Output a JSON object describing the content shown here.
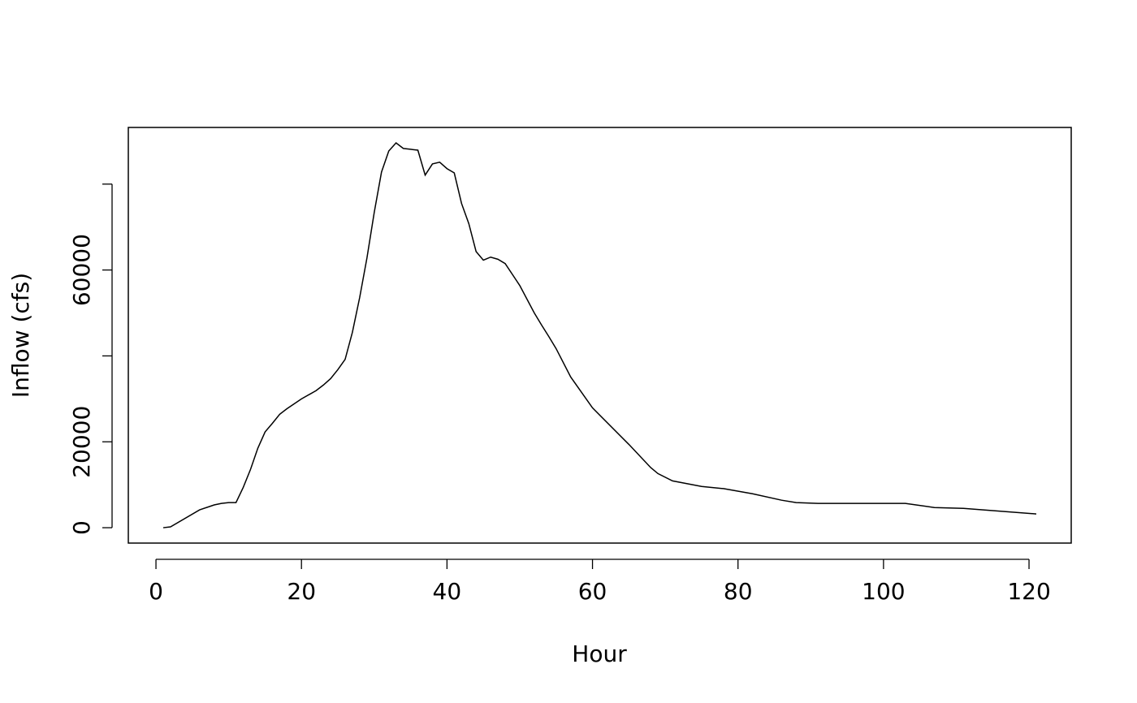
{
  "chart_data": {
    "type": "line",
    "x_label": "Hour",
    "y_label": "Inflow (cfs)",
    "x": [
      1,
      2,
      6,
      8,
      9,
      10,
      11,
      12,
      13,
      14,
      15,
      16,
      17,
      18,
      20,
      22,
      23,
      24,
      25,
      26,
      27,
      28,
      29,
      30,
      31,
      32,
      33,
      34,
      35,
      36,
      37,
      38,
      39,
      40,
      41,
      42,
      43,
      44,
      45,
      46,
      47,
      48,
      50,
      52,
      53,
      54,
      55,
      57,
      60,
      65,
      68,
      69,
      71,
      75,
      78,
      82,
      86,
      88,
      91,
      103,
      107,
      111,
      121
    ],
    "values": [
      0,
      200,
      4150,
      5300,
      5650,
      5850,
      5850,
      9400,
      13600,
      18500,
      22300,
      24300,
      26400,
      27700,
      30000,
      31900,
      33200,
      34700,
      36800,
      39200,
      45500,
      53600,
      62800,
      73400,
      82800,
      87700,
      89600,
      88300,
      88100,
      87900,
      82100,
      84700,
      85100,
      83600,
      82600,
      75500,
      70800,
      64300,
      62300,
      63000,
      62500,
      61500,
      56400,
      50000,
      47200,
      44500,
      41700,
      35100,
      27900,
      19400,
      14000,
      12600,
      10900,
      9600,
      9100,
      7900,
      6400,
      5850,
      5650,
      5650,
      4700,
      4500,
      3200
    ],
    "color": "#000000",
    "xlim": [
      -3.8,
      125.8
    ],
    "xticks": [
      0,
      20,
      40,
      60,
      80,
      100,
      120
    ],
    "ylim": [
      -3580,
      93190
    ],
    "yticks": [
      0,
      20000,
      {
        "value": 40000,
        "label": null
      },
      60000,
      {
        "value": 80000,
        "label": null
      }
    ],
    "grid": false
  }
}
